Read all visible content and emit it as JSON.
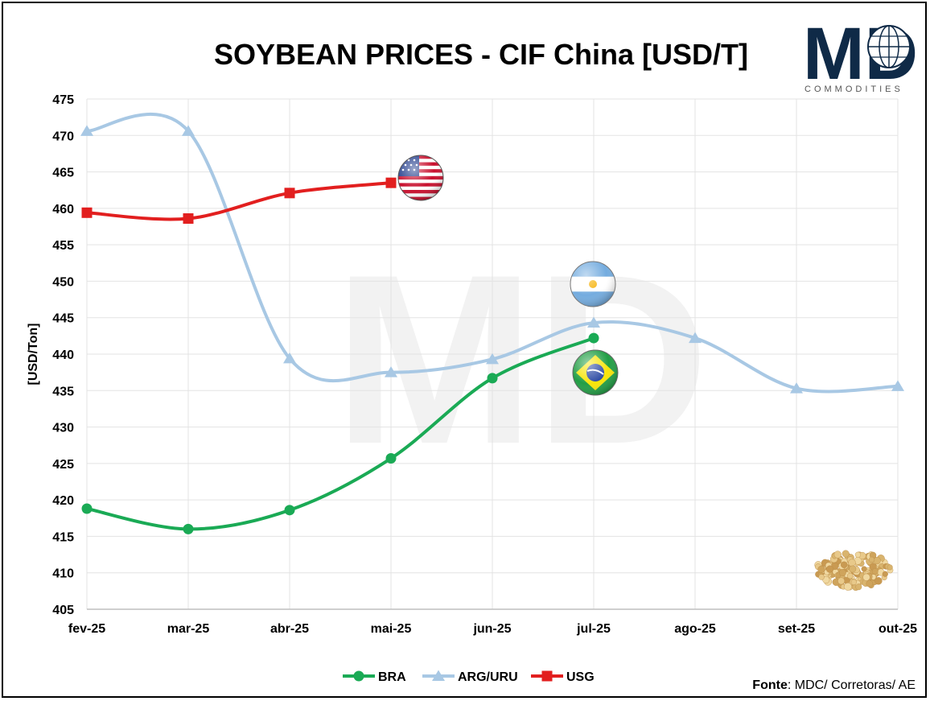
{
  "chart_data": {
    "type": "line",
    "title": "SOYBEAN PRICES - CIF China [USD/T]",
    "ylabel": "[USD/Ton]",
    "xlabel": "",
    "categories": [
      "fev-25",
      "mar-25",
      "abr-25",
      "mai-25",
      "jun-25",
      "jul-25",
      "ago-25",
      "set-25",
      "out-25"
    ],
    "ylim": [
      405,
      475
    ],
    "yticks": [
      405,
      410,
      415,
      420,
      425,
      430,
      435,
      440,
      445,
      450,
      455,
      460,
      465,
      470,
      475
    ],
    "grid": true,
    "legend_position": "bottom",
    "series": [
      {
        "name": "BRA",
        "color": "#1aaa55",
        "marker": "circle",
        "values": [
          418.8,
          416.0,
          418.6,
          425.7,
          436.7,
          442.2,
          null,
          null,
          null
        ]
      },
      {
        "name": "ARG/URU",
        "color": "#a8c8e4",
        "marker": "triangle",
        "values": [
          470.6,
          470.6,
          439.4,
          437.5,
          439.3,
          444.3,
          442.2,
          435.3,
          435.6
        ]
      },
      {
        "name": "USG",
        "color": "#e21f1f",
        "marker": "square",
        "values": [
          459.4,
          458.6,
          462.1,
          463.5,
          null,
          null,
          null,
          null,
          null
        ]
      }
    ]
  },
  "logo": {
    "letters": "MD",
    "subtitle": "COMMODITIES"
  },
  "source": {
    "label": "Fonte",
    "text": ": MDC/ Corretoras/ AE"
  },
  "icons": [
    "usa-flag-icon",
    "argentina-flag-icon",
    "brazil-flag-icon",
    "soybeans-icon"
  ]
}
